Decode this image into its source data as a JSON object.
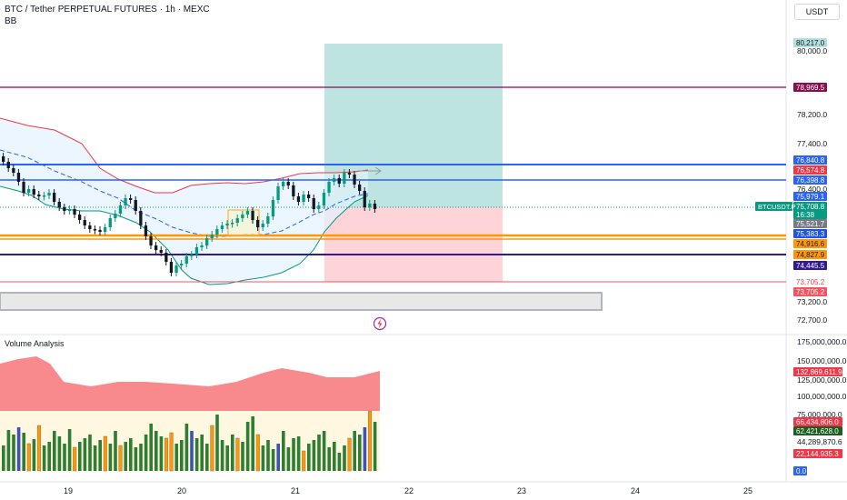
{
  "header": {
    "title": "BTC / Tether PERPETUAL FUTURES · 1h · MEXC",
    "indicator": "BB",
    "currency_button": "USDT"
  },
  "price_axis": {
    "ticks": [
      "80,000.0",
      "78,200.0",
      "77,400.0",
      "76,400.0",
      "73,200.0",
      "72,700.0"
    ],
    "labels": [
      {
        "text": "80,217.0",
        "bg": "#b2dfdb",
        "fg": "#131722"
      },
      {
        "text": "78,969.5",
        "bg": "#880e4f",
        "fg": "#ffffff"
      },
      {
        "text": "76,840.8",
        "bg": "#2962ff",
        "fg": "#ffffff"
      },
      {
        "text": "76,574.8",
        "bg": "#f23645",
        "fg": "#ffffff"
      },
      {
        "text": "76,398.8",
        "bg": "#2962ff",
        "fg": "#ffffff"
      },
      {
        "text": "75,979.1",
        "bg": "#2962ff",
        "fg": "#ffffff"
      },
      {
        "text": "75,708.8",
        "bg": "#089981",
        "fg": "#ffffff"
      },
      {
        "text": "16:38",
        "bg": "#089981",
        "fg": "#ffffff"
      },
      {
        "text": "75,521.7",
        "bg": "#787b86",
        "fg": "#ffffff"
      },
      {
        "text": "75,383.3",
        "bg": "#1e53e5",
        "fg": "#ffffff"
      },
      {
        "text": "74,916.6",
        "bg": "#ff9800",
        "fg": "#131722"
      },
      {
        "text": "74,827.9",
        "bg": "#ff9800",
        "fg": "#131722"
      },
      {
        "text": "74,445.5",
        "bg": "#311b92",
        "fg": "#ffffff"
      },
      {
        "text": "73,705.2",
        "bg": "#ffffff",
        "fg": "#f23645"
      },
      {
        "text": "73,705.2",
        "bg": "#f7525f",
        "fg": "#ffffff"
      }
    ],
    "symbol_tag": "BTCUSDT.P"
  },
  "volume_pane": {
    "title": "Volume Analysis",
    "ticks": [
      "175,000,000.0",
      "150,000,000.0",
      "125,000,000.0",
      "100,000,000.0",
      "75,000,000.0",
      "44,289,870.6"
    ],
    "labels": [
      {
        "text": "132,869,611.9",
        "bg": "#f23645",
        "fg": "#ffffff"
      },
      {
        "text": "66,434,806.0",
        "bg": "#f23645",
        "fg": "#ffffff"
      },
      {
        "text": "62,421,628.0",
        "bg": "#1b5e20",
        "fg": "#ffffff"
      },
      {
        "text": "22,144,935.3",
        "bg": "#f23645",
        "fg": "#ffffff"
      },
      {
        "text": "0.0",
        "bg": "#2962ff",
        "fg": "#ffffff"
      }
    ]
  },
  "time_axis": {
    "labels": [
      "19",
      "20",
      "21",
      "22",
      "23",
      "24",
      "25"
    ]
  },
  "colors": {
    "bull": "#089981",
    "bear": "#131722",
    "blue_line": "#2962ff",
    "orange_line": "#ff9800",
    "maroon_line": "#880e4f",
    "navy_line": "#311b92",
    "bb_upper": "#f23645",
    "bb_lower": "#089981",
    "bb_basis": "#2962ff"
  }
}
